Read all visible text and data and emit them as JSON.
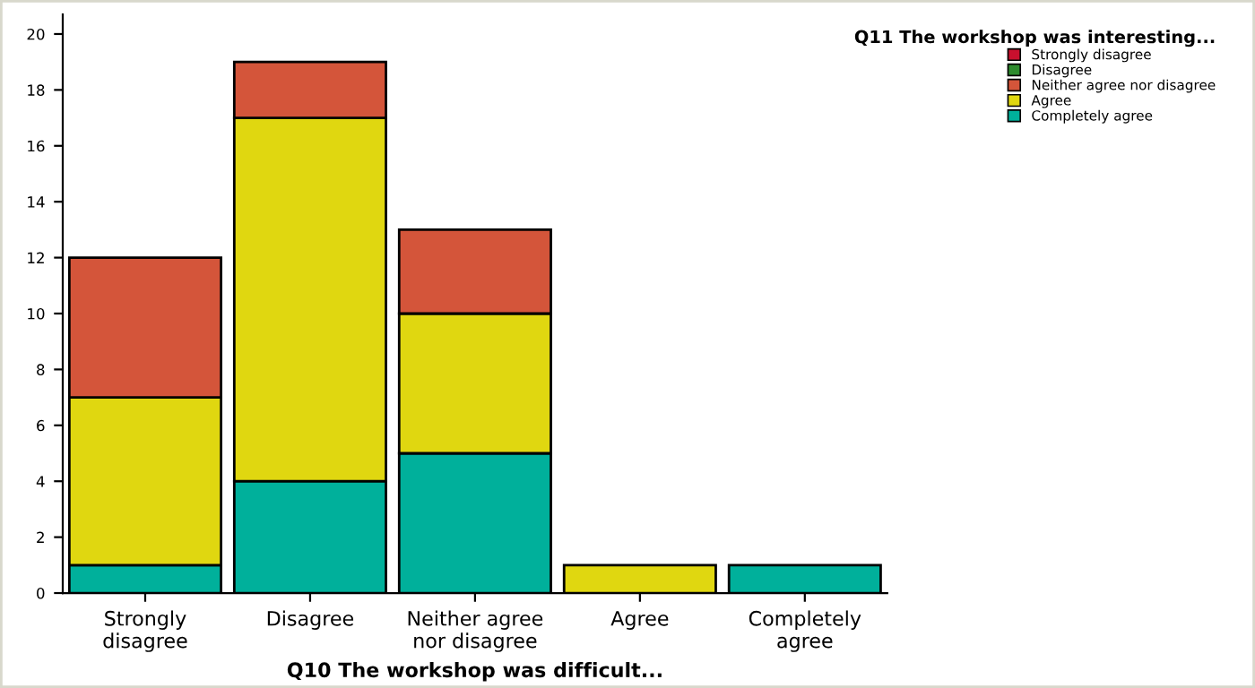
{
  "chart_data": {
    "type": "bar",
    "stacked": true,
    "xlabel": "Q10 The workshop was difficult...",
    "legend_title": "Q11 The workshop was interesting...",
    "categories": [
      "Strongly\ndisagree",
      "Disagree",
      "Neither agree\nnor disagree",
      "Agree",
      "Completely\nagree"
    ],
    "series": [
      {
        "name": "Completely agree",
        "color": "#00b09b",
        "values": [
          1,
          4,
          5,
          0,
          1
        ]
      },
      {
        "name": "Agree",
        "color": "#e0d710",
        "values": [
          6,
          13,
          5,
          1,
          0
        ]
      },
      {
        "name": "Neither agree nor disagree",
        "color": "#d4553a",
        "values": [
          5,
          2,
          3,
          0,
          0
        ]
      },
      {
        "name": "Disagree",
        "color": "#2e8b2e",
        "values": [
          0,
          0,
          0,
          0,
          0
        ]
      },
      {
        "name": "Strongly disagree",
        "color": "#c8102e",
        "values": [
          0,
          0,
          0,
          0,
          0
        ]
      }
    ],
    "ylim": [
      0,
      20.7
    ],
    "yticks": [
      0,
      2,
      4,
      6,
      8,
      10,
      12,
      14,
      16,
      18,
      20
    ],
    "grid": false,
    "legend": "top right"
  }
}
